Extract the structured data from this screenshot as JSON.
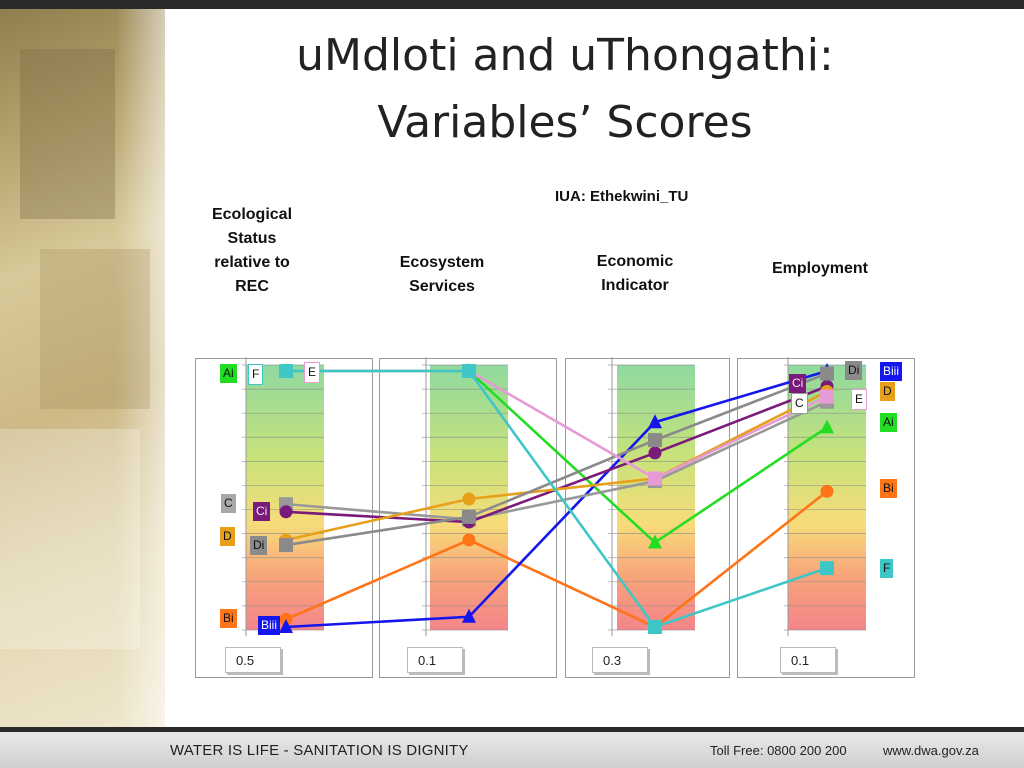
{
  "slide": {
    "title_line1": "uMdloti and uThongathi:",
    "title_line2": "Variables’ Scores",
    "iua": "IUA: Ethekwini_TU",
    "footer_left": "WATER IS LIFE - SANITATION IS DIGNITY",
    "footer_toll": "Toll Free: 0800 200 200",
    "footer_url": "www.dwa.gov.za"
  },
  "headers": [
    {
      "line1": "Ecological",
      "line2": "Status",
      "line3": "relative to",
      "line4": "REC"
    },
    {
      "line1": "Ecosystem",
      "line2": "Services"
    },
    {
      "line1": "Economic",
      "line2": "Indicator"
    },
    {
      "line1": "Employment"
    }
  ],
  "weights": [
    "0.5",
    "0.1",
    "0.3",
    "0.1"
  ],
  "colors": {
    "Ai": "#22dd22",
    "Bi": "#ff7417",
    "Biii": "#1515ee",
    "C": "#999999",
    "Ci": "#7a1a7a",
    "D": "#e6a01a",
    "Di": "#8a8a8a",
    "E": "#e69ad6",
    "F": "#3fc6c6"
  },
  "chart_data": {
    "type": "line",
    "description_axes": "four parallel vertical axes, each scored 0 (bottom) to 1 (top)",
    "x": [
      "Ecological Status relative to REC",
      "Ecosystem Services",
      "Economic Indicator",
      "Employment"
    ],
    "ylim": [
      0,
      1
    ],
    "series": [
      {
        "name": "Ai",
        "marker": "triangle",
        "values": [
          1.0,
          1.0,
          0.33,
          0.78
        ]
      },
      {
        "name": "Bi",
        "marker": "circle",
        "values": [
          0.03,
          0.34,
          0.0,
          0.53
        ]
      },
      {
        "name": "Biii",
        "marker": "triangle",
        "values": [
          0.0,
          0.04,
          0.8,
          1.0
        ]
      },
      {
        "name": "C",
        "marker": "square",
        "values": [
          0.48,
          0.42,
          0.57,
          0.88
        ]
      },
      {
        "name": "Ci",
        "marker": "circle",
        "values": [
          0.45,
          0.41,
          0.68,
          0.94
        ]
      },
      {
        "name": "D",
        "marker": "circle",
        "values": [
          0.34,
          0.5,
          0.58,
          0.92
        ]
      },
      {
        "name": "Di",
        "marker": "square",
        "values": [
          0.32,
          0.43,
          0.73,
          0.99
        ]
      },
      {
        "name": "E",
        "marker": "square",
        "values": [
          1.0,
          1.0,
          0.58,
          0.9
        ]
      },
      {
        "name": "F",
        "marker": "square",
        "values": [
          1.0,
          1.0,
          0.0,
          0.23
        ]
      }
    ],
    "labels": {
      "panel1": [
        "Ai",
        "F",
        "E",
        "C",
        "Ci",
        "D",
        "Di",
        "Bi",
        "Biii"
      ],
      "panel4": [
        "Di",
        "Biii",
        "Ci",
        "D",
        "C",
        "E",
        "Ai",
        "Bi",
        "F"
      ]
    }
  }
}
